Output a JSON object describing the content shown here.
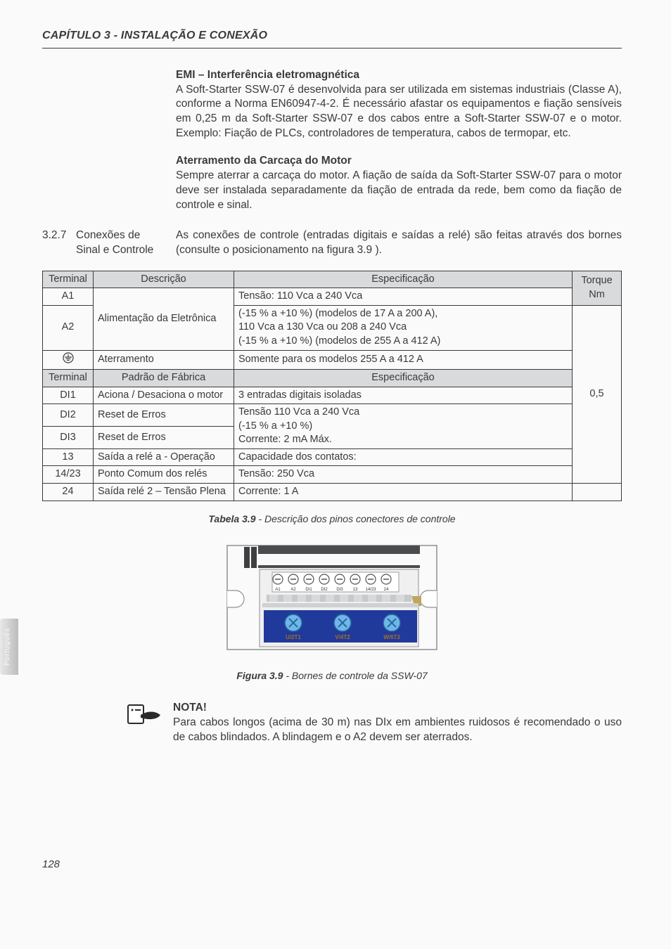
{
  "page": {
    "chapter_header": "CAPÍTULO 3 - INSTALAÇÃO E CONEXÃO",
    "page_number": "128",
    "lang_tab": "Português"
  },
  "section_emi": {
    "title": "EMI – Interferência eletromagnética",
    "body": "A Soft-Starter SSW-07 é desenvolvida para ser utilizada em sistemas industriais (Classe A), conforme a Norma EN60947-4-2. É necessário afastar os equipamentos e fiação sensíveis em 0,25 m da Soft-Starter SSW-07 e dos cabos entre a Soft-Starter SSW-07 e o motor. Exemplo: Fiação de PLCs, controladores de temperatura, cabos de termopar, etc."
  },
  "section_ground": {
    "title": "Aterramento da Carcaça do Motor",
    "body": "Sempre aterrar a carcaça do motor. A fiação de saída da Soft-Starter SSW-07 para o motor deve ser instalada separadamente da fiação de entrada da rede, bem como da fiação de controle e sinal."
  },
  "section_327": {
    "num": "3.2.7",
    "title_l1": "Conexões de",
    "title_l2": "Sinal e Controle",
    "body": "As conexões de  controle (entradas digitais e saídas a relé) são feitas através dos bornes (consulte o posicionamento na figura 3.9 )."
  },
  "table": {
    "headers1": {
      "terminal": "Terminal",
      "desc": "Descrição",
      "spec": "Especificação",
      "torque": "Torque Nm"
    },
    "headers2": {
      "terminal": "Terminal",
      "desc": "Padrão de Fábrica",
      "spec": "Especificação"
    },
    "torque_value": "0,5",
    "rows_a": [
      {
        "t": "A1",
        "desc": "Alimentação da Eletrônica",
        "spec_l1": "Tensão: 110 Vca a 240 Vca",
        "spec_l2": "(-15 % a +10 %) (modelos de 17 A a 200 A),",
        "spec_l3": "110 Vca a 130 Vca ou 208 a 240 Vca",
        "spec_l4": "(-15 % a +10 %) (modelos de 255 A a 412 A)"
      },
      {
        "t": "A2"
      }
    ],
    "row_gnd": {
      "desc": "Aterramento",
      "spec": "Somente para os modelos 255 A a  412 A"
    },
    "rows_di": [
      {
        "t": "DI1",
        "desc": "Aciona / Desaciona o motor"
      },
      {
        "t": "DI2",
        "desc": "Reset de Erros"
      },
      {
        "t": "DI3",
        "desc": "Reset de Erros"
      }
    ],
    "di_spec": {
      "l1": "3 entradas digitais isoladas",
      "l2": "Tensão 110 Vca a 240 Vca",
      "l3": "(-15 % a +10 %)",
      "l4": "Corrente: 2 mA Máx."
    },
    "rows_relay": [
      {
        "t": "13",
        "desc": "Saída a relé a - Operação"
      },
      {
        "t": "14/23",
        "desc": "Ponto Comum dos relés"
      },
      {
        "t": "24",
        "desc": "Saída relé 2 – Tensão Plena"
      }
    ],
    "relay_spec": {
      "l1": "Capacidade dos contatos:",
      "l2": "Tensão: 250 Vca",
      "l3": "Corrente: 1 A"
    },
    "caption_bold": "Tabela 3.9",
    "caption_rest": " - Descrição dos pinos conectores de controle"
  },
  "figure": {
    "terminal_labels": [
      "A1",
      "A2",
      "DI1",
      "DI2",
      "DI3",
      "13",
      "14/23",
      "24"
    ],
    "power_labels": [
      "U/2T1",
      "V/4T2",
      "W/6T3"
    ],
    "caption_bold": "Figura 3.9",
    "caption_rest": " - Bornes de controle da SSW-07",
    "colors": {
      "frame": "#8f9092",
      "strip_bg": "#203a9b",
      "screw_fill": "#6fb7e6",
      "screw_stroke": "#2a68a8",
      "label_color": "#a36f1f",
      "top_dark": "#3e3f41"
    }
  },
  "nota": {
    "heading": "NOTA!",
    "body": "Para cabos longos (acima de 30 m) nas DIx em ambientes ruidosos é recomendado o uso de cabos blindados. A blindagem e o A2 devem ser aterrados."
  }
}
